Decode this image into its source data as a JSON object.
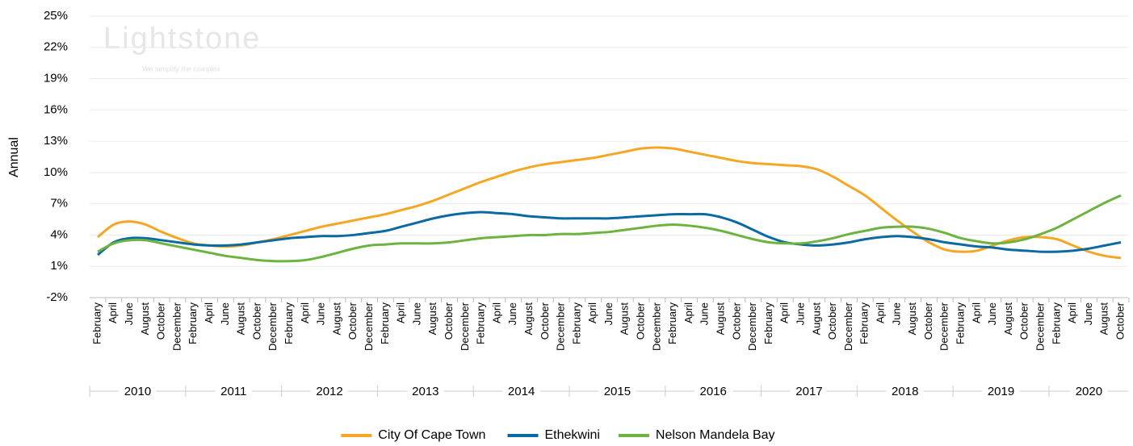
{
  "chart_data": {
    "type": "line",
    "y_label": "Annual",
    "watermark": {
      "title": "Lightstone",
      "tagline": "We simplify the complex"
    },
    "categories": [
      "February",
      "April",
      "June",
      "August",
      "October",
      "December",
      "February",
      "April",
      "June",
      "August",
      "October",
      "December",
      "February",
      "April",
      "June",
      "August",
      "October",
      "December",
      "February",
      "April",
      "June",
      "August",
      "October",
      "December",
      "February",
      "April",
      "June",
      "August",
      "October",
      "December",
      "February",
      "April",
      "June",
      "August",
      "October",
      "December",
      "February",
      "April",
      "June",
      "August",
      "October",
      "December",
      "February",
      "April",
      "June",
      "August",
      "October",
      "December",
      "February",
      "April",
      "June",
      "August",
      "October",
      "December",
      "February",
      "April",
      "June",
      "August",
      "October",
      "December",
      "February",
      "April",
      "June",
      "August",
      "October"
    ],
    "years": [
      "2010",
      "2011",
      "2012",
      "2013",
      "2014",
      "2015",
      "2016",
      "2017",
      "2018",
      "2019",
      "2020"
    ],
    "ylim": [
      -2,
      25
    ],
    "yticks": [
      {
        "value": -2,
        "label": "-2%"
      },
      {
        "value": 1,
        "label": "1%"
      },
      {
        "value": 4,
        "label": "4%"
      },
      {
        "value": 7,
        "label": "7%"
      },
      {
        "value": 10,
        "label": "10%"
      },
      {
        "value": 13,
        "label": "13%"
      },
      {
        "value": 16,
        "label": "16%"
      },
      {
        "value": 19,
        "label": "19%"
      },
      {
        "value": 22,
        "label": "22%"
      },
      {
        "value": 25,
        "label": "25%"
      }
    ],
    "grid": true,
    "legend": "bottom",
    "series": [
      {
        "name": "City Of Cape Town",
        "color": "#f5a623",
        "values": [
          3.8,
          5.0,
          5.3,
          5.0,
          4.3,
          3.7,
          3.2,
          3.0,
          2.9,
          3.0,
          3.3,
          3.6,
          4.0,
          4.4,
          4.8,
          5.1,
          5.4,
          5.7,
          6.0,
          6.4,
          6.8,
          7.3,
          7.9,
          8.5,
          9.1,
          9.6,
          10.1,
          10.5,
          10.8,
          11.0,
          11.2,
          11.4,
          11.7,
          12.0,
          12.3,
          12.4,
          12.3,
          12.0,
          11.7,
          11.4,
          11.1,
          10.9,
          10.8,
          10.7,
          10.6,
          10.3,
          9.6,
          8.7,
          7.8,
          6.6,
          5.4,
          4.3,
          3.3,
          2.6,
          2.4,
          2.5,
          3.0,
          3.5,
          3.8,
          3.8,
          3.6,
          3.0,
          2.4,
          2.0,
          1.8
        ]
      },
      {
        "name": "Ethekwini",
        "color": "#0a6aa1",
        "values": [
          2.1,
          3.3,
          3.7,
          3.7,
          3.5,
          3.3,
          3.1,
          3.0,
          3.0,
          3.1,
          3.3,
          3.5,
          3.7,
          3.8,
          3.9,
          3.9,
          4.0,
          4.2,
          4.4,
          4.8,
          5.2,
          5.6,
          5.9,
          6.1,
          6.2,
          6.1,
          6.0,
          5.8,
          5.7,
          5.6,
          5.6,
          5.6,
          5.6,
          5.7,
          5.8,
          5.9,
          6.0,
          6.0,
          6.0,
          5.7,
          5.2,
          4.5,
          3.8,
          3.3,
          3.1,
          3.0,
          3.1,
          3.3,
          3.6,
          3.8,
          3.9,
          3.8,
          3.6,
          3.3,
          3.1,
          2.9,
          2.8,
          2.6,
          2.5,
          2.4,
          2.4,
          2.5,
          2.7,
          3.0,
          3.3
        ]
      },
      {
        "name": "Nelson Mandela Bay",
        "color": "#6db33f",
        "values": [
          2.4,
          3.2,
          3.5,
          3.5,
          3.2,
          2.9,
          2.6,
          2.3,
          2.0,
          1.8,
          1.6,
          1.5,
          1.5,
          1.6,
          1.9,
          2.3,
          2.7,
          3.0,
          3.1,
          3.2,
          3.2,
          3.2,
          3.3,
          3.5,
          3.7,
          3.8,
          3.9,
          4.0,
          4.0,
          4.1,
          4.1,
          4.2,
          4.3,
          4.5,
          4.7,
          4.9,
          5.0,
          4.9,
          4.7,
          4.4,
          4.0,
          3.6,
          3.3,
          3.2,
          3.2,
          3.4,
          3.7,
          4.1,
          4.4,
          4.7,
          4.8,
          4.8,
          4.6,
          4.2,
          3.7,
          3.4,
          3.2,
          3.3,
          3.6,
          4.1,
          4.7,
          5.5,
          6.3,
          7.1,
          7.8
        ]
      }
    ]
  }
}
